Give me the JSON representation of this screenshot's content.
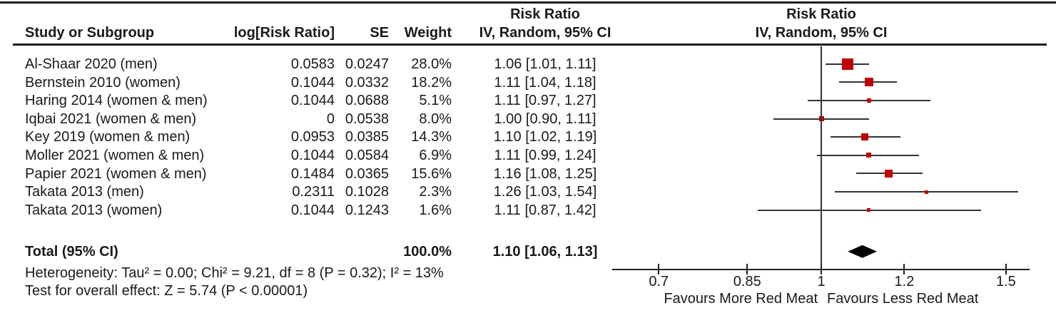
{
  "table": {
    "headers": {
      "study": "Study or Subgroup",
      "log_rr": "log[Risk Ratio]",
      "se": "SE",
      "weight": "Weight",
      "ci": "IV, Random, 95% CI"
    },
    "total": {
      "label": "Total (95% CI)",
      "weight": "100.0%",
      "ci_text": "1.10 [1.06, 1.13]"
    }
  },
  "footer": {
    "heterogeneity": "Heterogeneity: Tau² = 0.00; Chi² = 9.21, df = 8 (P = 0.32); I² = 13%",
    "overall_effect": "Test for overall effect: Z = 5.74 (P < 0.00001)"
  },
  "chart_data": {
    "type": "scatter",
    "subtype": "forest-plot-meta-analysis",
    "title": "Risk Ratio",
    "model_label": "IV, Random, 95% CI",
    "x_scale": "log",
    "x_ticks": [
      0.7,
      0.85,
      1,
      1.2,
      1.5
    ],
    "x_tick_labels": [
      "0.7",
      "0.85",
      "1",
      "1.2",
      "1.5"
    ],
    "xlabel_left": "Favours More Red Meat",
    "xlabel_right": "Favours Less Red Meat",
    "studies": [
      {
        "name": "Al-Shaar 2020 (men)",
        "log_rr": "0.0583",
        "se": "0.0247",
        "weight": "28.0%",
        "weight_pct": 28.0,
        "rr": 1.06,
        "ci_low": 1.01,
        "ci_high": 1.11,
        "ci_text": "1.06 [1.01, 1.11]"
      },
      {
        "name": "Bernstein 2010 (women)",
        "log_rr": "0.1044",
        "se": "0.0332",
        "weight": "18.2%",
        "weight_pct": 18.2,
        "rr": 1.11,
        "ci_low": 1.04,
        "ci_high": 1.18,
        "ci_text": "1.11 [1.04, 1.18]"
      },
      {
        "name": "Haring 2014 (women & men)",
        "log_rr": "0.1044",
        "se": "0.0688",
        "weight": "5.1%",
        "weight_pct": 5.1,
        "rr": 1.11,
        "ci_low": 0.97,
        "ci_high": 1.27,
        "ci_text": "1.11 [0.97, 1.27]"
      },
      {
        "name": "Iqbai 2021 (women & men)",
        "log_rr": "0",
        "se": "0.0538",
        "weight": "8.0%",
        "weight_pct": 8.0,
        "rr": 1.0,
        "ci_low": 0.9,
        "ci_high": 1.11,
        "ci_text": "1.00 [0.90, 1.11]"
      },
      {
        "name": "Key 2019 (women & men)",
        "log_rr": "0.0953",
        "se": "0.0385",
        "weight": "14.3%",
        "weight_pct": 14.3,
        "rr": 1.1,
        "ci_low": 1.02,
        "ci_high": 1.19,
        "ci_text": "1.10 [1.02, 1.19]"
      },
      {
        "name": "Moller 2021 (women & men)",
        "log_rr": "0.1044",
        "se": "0.0584",
        "weight": "6.9%",
        "weight_pct": 6.9,
        "rr": 1.11,
        "ci_low": 0.99,
        "ci_high": 1.24,
        "ci_text": "1.11 [0.99, 1.24]"
      },
      {
        "name": "Papier 2021 (women & men)",
        "log_rr": "0.1484",
        "se": "0.0365",
        "weight": "15.6%",
        "weight_pct": 15.6,
        "rr": 1.16,
        "ci_low": 1.08,
        "ci_high": 1.25,
        "ci_text": "1.16 [1.08, 1.25]"
      },
      {
        "name": "Takata 2013 (men)",
        "log_rr": "0.2311",
        "se": "0.1028",
        "weight": "2.3%",
        "weight_pct": 2.3,
        "rr": 1.26,
        "ci_low": 1.03,
        "ci_high": 1.54,
        "ci_text": "1.26 [1.03, 1.54]"
      },
      {
        "name": "Takata 2013 (women)",
        "log_rr": "0.1044",
        "se": "0.1243",
        "weight": "1.6%",
        "weight_pct": 1.6,
        "rr": 1.11,
        "ci_low": 0.87,
        "ci_high": 1.42,
        "ci_text": "1.11 [0.87, 1.42]"
      }
    ],
    "total": {
      "rr": 1.1,
      "ci_low": 1.06,
      "ci_high": 1.13
    },
    "colors": {
      "marker": "#c00000",
      "diamond": "#000000",
      "line": "#333333",
      "axis": "#1f1f1f"
    }
  }
}
